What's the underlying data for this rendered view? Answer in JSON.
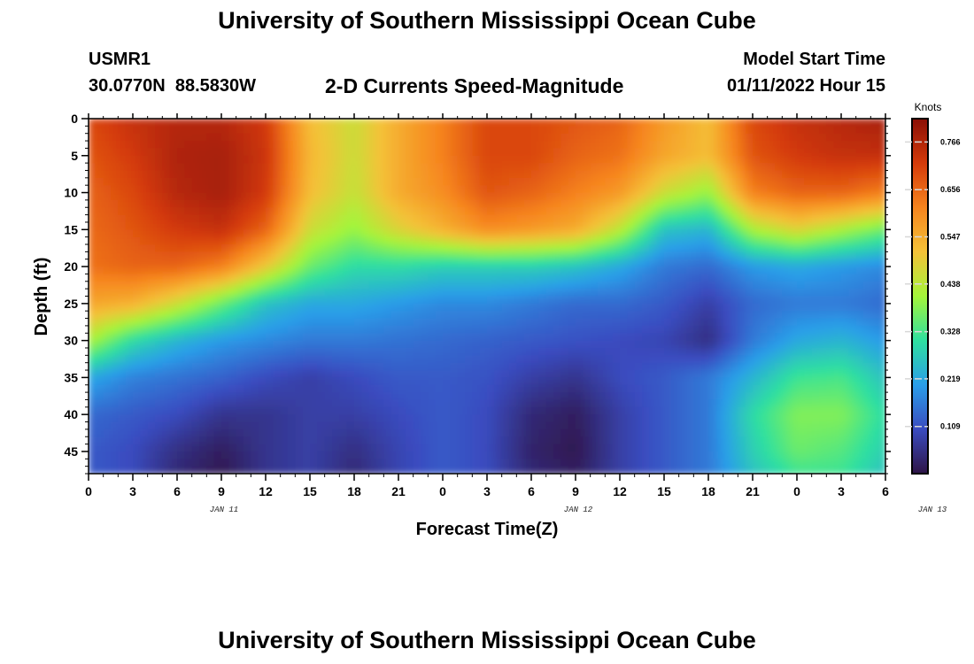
{
  "page": {
    "title_top": "University of Southern Mississippi Ocean Cube",
    "title_bottom": "University of Southern Mississippi Ocean Cube",
    "station_id": "USMR1",
    "station_coords": "30.0770N  88.5830W",
    "model_start_label": "Model Start Time",
    "model_start_value": "01/11/2022 Hour 15"
  },
  "chart_data": {
    "type": "heatmap",
    "title": "2-D Currents Speed-Magnitude",
    "xlabel": "Forecast Time(Z)",
    "ylabel": "Depth (ft)",
    "x_tick_labels": [
      "0",
      "3",
      "6",
      "9",
      "12",
      "15",
      "18",
      "21",
      "0",
      "3",
      "6",
      "9",
      "12",
      "15",
      "18",
      "21",
      "0",
      "3",
      "6"
    ],
    "date_labels": [
      {
        "label": "JAN 11",
        "at_hour": 9
      },
      {
        "label": "JAN 12",
        "at_hour": 33
      },
      {
        "label": "JAN 13",
        "at_hour": 57
      }
    ],
    "x_range_hours": [
      0,
      54
    ],
    "y_tick_labels": [
      "0",
      "5",
      "10",
      "15",
      "20",
      "25",
      "30",
      "35",
      "40",
      "45"
    ],
    "y_range_ft": [
      0,
      48
    ],
    "y_inverted": true,
    "colorbar": {
      "unit": "Knots",
      "tick_labels": [
        "0.766",
        "0.656",
        "0.547",
        "0.438",
        "0.328",
        "0.219",
        "0.109"
      ],
      "range": [
        0.0,
        0.82
      ],
      "colors": [
        "#2e1446",
        "#3a4cc0",
        "#2a9ee9",
        "#2fe0a0",
        "#a4f53a",
        "#f4c238",
        "#f6841e",
        "#d43a0a",
        "#8a0f06"
      ]
    },
    "x_hours": [
      0,
      3,
      6,
      9,
      12,
      15,
      18,
      21,
      24,
      27,
      30,
      33,
      36,
      39,
      42,
      45,
      48,
      51,
      54
    ],
    "depths_ft": [
      0,
      5,
      10,
      15,
      20,
      25,
      30,
      35,
      40,
      45,
      48
    ],
    "speed_knots": [
      [
        0.7,
        0.74,
        0.76,
        0.76,
        0.72,
        0.52,
        0.46,
        0.55,
        0.62,
        0.7,
        0.7,
        0.68,
        0.66,
        0.58,
        0.52,
        0.7,
        0.74,
        0.76,
        0.78
      ],
      [
        0.68,
        0.72,
        0.77,
        0.78,
        0.73,
        0.53,
        0.46,
        0.55,
        0.62,
        0.7,
        0.7,
        0.66,
        0.64,
        0.56,
        0.52,
        0.68,
        0.72,
        0.74,
        0.74
      ],
      [
        0.66,
        0.7,
        0.76,
        0.78,
        0.72,
        0.52,
        0.45,
        0.55,
        0.6,
        0.68,
        0.66,
        0.62,
        0.58,
        0.46,
        0.4,
        0.62,
        0.66,
        0.66,
        0.62
      ],
      [
        0.65,
        0.68,
        0.72,
        0.74,
        0.66,
        0.46,
        0.4,
        0.48,
        0.54,
        0.6,
        0.58,
        0.55,
        0.44,
        0.26,
        0.24,
        0.42,
        0.48,
        0.42,
        0.36
      ],
      [
        0.64,
        0.66,
        0.66,
        0.62,
        0.5,
        0.36,
        0.3,
        0.3,
        0.28,
        0.28,
        0.28,
        0.26,
        0.22,
        0.16,
        0.14,
        0.2,
        0.22,
        0.2,
        0.18
      ],
      [
        0.56,
        0.54,
        0.46,
        0.36,
        0.26,
        0.22,
        0.22,
        0.2,
        0.18,
        0.18,
        0.16,
        0.14,
        0.14,
        0.12,
        0.08,
        0.14,
        0.16,
        0.16,
        0.14
      ],
      [
        0.42,
        0.3,
        0.24,
        0.2,
        0.18,
        0.16,
        0.16,
        0.15,
        0.14,
        0.13,
        0.12,
        0.11,
        0.1,
        0.09,
        0.05,
        0.16,
        0.22,
        0.24,
        0.2
      ],
      [
        0.22,
        0.17,
        0.15,
        0.13,
        0.1,
        0.08,
        0.1,
        0.12,
        0.12,
        0.11,
        0.08,
        0.06,
        0.1,
        0.12,
        0.16,
        0.24,
        0.32,
        0.33,
        0.26
      ],
      [
        0.14,
        0.12,
        0.1,
        0.06,
        0.06,
        0.08,
        0.08,
        0.1,
        0.12,
        0.1,
        0.04,
        0.02,
        0.08,
        0.12,
        0.16,
        0.3,
        0.38,
        0.38,
        0.3
      ],
      [
        0.12,
        0.1,
        0.05,
        0.02,
        0.06,
        0.08,
        0.05,
        0.09,
        0.12,
        0.1,
        0.03,
        0.01,
        0.08,
        0.12,
        0.16,
        0.28,
        0.36,
        0.34,
        0.28
      ],
      [
        0.12,
        0.1,
        0.04,
        0.01,
        0.06,
        0.08,
        0.04,
        0.09,
        0.12,
        0.1,
        0.04,
        0.02,
        0.08,
        0.12,
        0.16,
        0.26,
        0.32,
        0.32,
        0.26
      ]
    ]
  }
}
